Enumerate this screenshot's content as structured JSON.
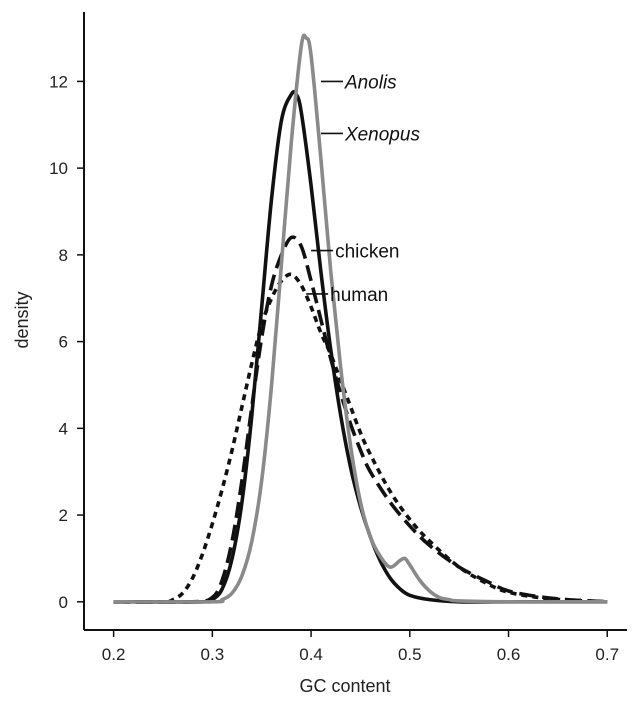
{
  "chart_data": {
    "type": "line",
    "title": "",
    "xlabel": "GC content",
    "ylabel": "density",
    "xlim": [
      0.17,
      0.72
    ],
    "ylim": [
      -0.65,
      13.6
    ],
    "x_ticks": [
      0.2,
      0.3,
      0.4,
      0.5,
      0.6,
      0.7
    ],
    "x_tick_labels": [
      "0.2",
      "0.3",
      "0.4",
      "0.5",
      "0.6",
      "0.7"
    ],
    "y_ticks": [
      0,
      2,
      4,
      6,
      8,
      10,
      12
    ],
    "y_tick_labels": [
      "0",
      "2",
      "4",
      "6",
      "8",
      "10",
      "12"
    ],
    "grid": false,
    "legend": "direct labels beside peaks",
    "series": [
      {
        "name": "Anolis",
        "label_italic": true,
        "color": "#8a8a8a",
        "dash": "solid",
        "label_anchor": [
          0.41,
          12.0
        ],
        "x": [
          0.2,
          0.3,
          0.31,
          0.32,
          0.33,
          0.34,
          0.35,
          0.36,
          0.37,
          0.38,
          0.39,
          0.395,
          0.4,
          0.41,
          0.42,
          0.43,
          0.44,
          0.45,
          0.46,
          0.47,
          0.48,
          0.49,
          0.495,
          0.5,
          0.51,
          0.52,
          0.53,
          0.54,
          0.55,
          0.6,
          0.65,
          0.7
        ],
        "y": [
          0,
          0,
          0.05,
          0.2,
          0.6,
          1.4,
          2.8,
          5.0,
          7.8,
          10.6,
          12.8,
          13.0,
          12.6,
          10.2,
          7.6,
          5.4,
          3.6,
          2.3,
          1.5,
          1.05,
          0.8,
          0.95,
          1.0,
          0.85,
          0.5,
          0.25,
          0.1,
          0.05,
          0.02,
          0,
          0,
          0
        ]
      },
      {
        "name": "Xenopus",
        "label_italic": true,
        "color": "#111111",
        "dash": "solid",
        "label_anchor": [
          0.41,
          10.8
        ],
        "x": [
          0.2,
          0.29,
          0.3,
          0.31,
          0.32,
          0.33,
          0.34,
          0.35,
          0.36,
          0.37,
          0.38,
          0.385,
          0.39,
          0.4,
          0.41,
          0.42,
          0.43,
          0.44,
          0.45,
          0.46,
          0.47,
          0.48,
          0.49,
          0.5,
          0.52,
          0.55,
          0.6,
          0.7
        ],
        "y": [
          0,
          0,
          0.05,
          0.3,
          1.0,
          2.3,
          4.3,
          6.8,
          9.3,
          11.1,
          11.7,
          11.7,
          11.3,
          9.6,
          7.6,
          5.8,
          4.3,
          3.1,
          2.2,
          1.5,
          0.95,
          0.55,
          0.3,
          0.15,
          0.05,
          0,
          0,
          0
        ]
      },
      {
        "name": "chicken",
        "label_italic": false,
        "color": "#111111",
        "dash": "long-dash",
        "label_anchor": [
          0.4,
          8.1
        ],
        "x": [
          0.2,
          0.28,
          0.3,
          0.31,
          0.32,
          0.33,
          0.34,
          0.35,
          0.36,
          0.37,
          0.38,
          0.39,
          0.4,
          0.41,
          0.42,
          0.43,
          0.44,
          0.45,
          0.46,
          0.48,
          0.5,
          0.52,
          0.55,
          0.58,
          0.6,
          0.63,
          0.66,
          0.7
        ],
        "y": [
          0,
          0,
          0.1,
          0.5,
          1.4,
          2.8,
          4.5,
          6.1,
          7.3,
          8.0,
          8.4,
          8.2,
          7.4,
          6.5,
          5.6,
          4.8,
          4.1,
          3.5,
          3.0,
          2.3,
          1.75,
          1.3,
          0.8,
          0.45,
          0.25,
          0.12,
          0.05,
          0
        ]
      },
      {
        "name": "human",
        "label_italic": false,
        "color": "#111111",
        "dash": "short-dash",
        "label_anchor": [
          0.395,
          7.1
        ],
        "x": [
          0.2,
          0.25,
          0.26,
          0.27,
          0.28,
          0.29,
          0.3,
          0.31,
          0.32,
          0.33,
          0.34,
          0.35,
          0.36,
          0.37,
          0.38,
          0.39,
          0.4,
          0.41,
          0.42,
          0.43,
          0.44,
          0.45,
          0.46,
          0.48,
          0.5,
          0.52,
          0.55,
          0.58,
          0.6,
          0.63,
          0.66,
          0.7
        ],
        "y": [
          0,
          0,
          0.05,
          0.2,
          0.55,
          1.1,
          1.8,
          2.6,
          3.5,
          4.5,
          5.5,
          6.4,
          7.0,
          7.4,
          7.55,
          7.3,
          6.8,
          6.2,
          5.7,
          5.1,
          4.5,
          3.9,
          3.4,
          2.55,
          1.9,
          1.4,
          0.8,
          0.4,
          0.22,
          0.1,
          0.04,
          0
        ]
      }
    ]
  }
}
